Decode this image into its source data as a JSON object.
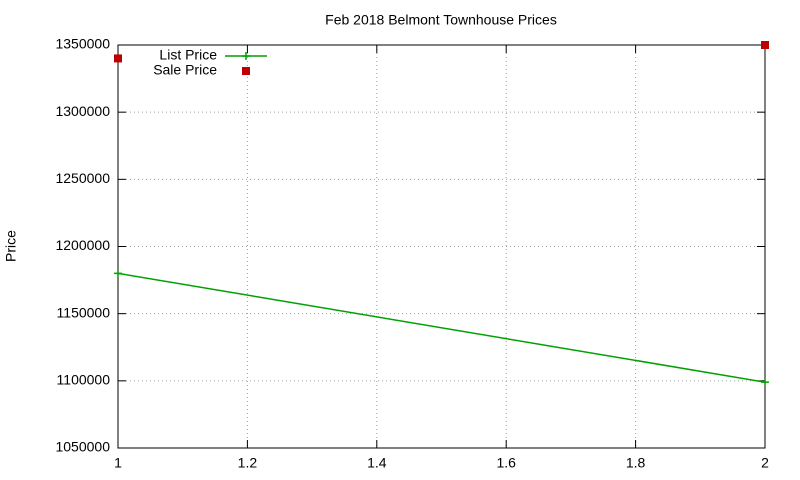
{
  "chart_data": {
    "type": "line",
    "title": "Feb 2018 Belmont Townhouse Prices",
    "y_label": "Price",
    "series": [
      {
        "name": "List Price",
        "color": "#00a000",
        "style": "linespoints",
        "x": [
          1,
          2
        ],
        "values": [
          1180000,
          1099000
        ]
      },
      {
        "name": "Sale Price",
        "color": "#c00000",
        "style": "points",
        "x": [
          1,
          2
        ],
        "values": [
          1340000,
          1350000
        ]
      }
    ],
    "xlim": [
      1,
      2
    ],
    "xticks": [
      1,
      1.2,
      1.4,
      1.6,
      1.8,
      2
    ],
    "ylim": [
      1050000,
      1350000
    ],
    "yticks": [
      1050000,
      1100000,
      1150000,
      1200000,
      1250000,
      1300000,
      1350000
    ],
    "grid": true,
    "legend": "top-left"
  }
}
